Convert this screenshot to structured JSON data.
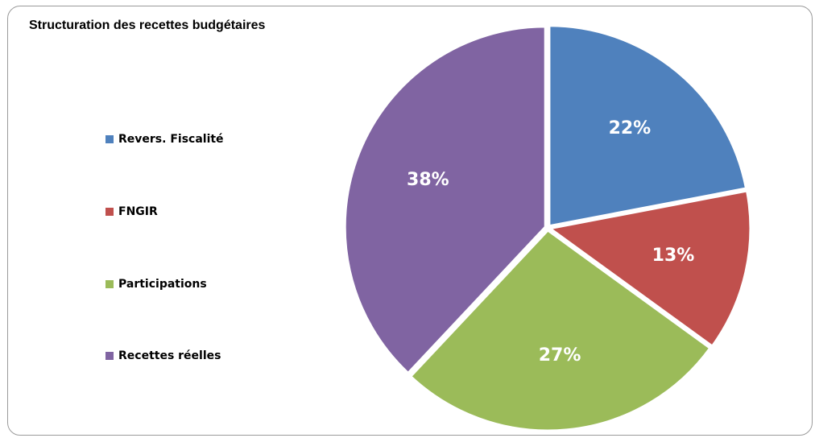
{
  "chart_data": {
    "type": "pie",
    "title": "Structuration des recettes budgétaires",
    "legend_position": "left",
    "slices": [
      {
        "name": "Revers. Fiscalité",
        "value": 22,
        "label": "22%",
        "color": "#4F81BD"
      },
      {
        "name": "FNGIR",
        "value": 13,
        "label": "13%",
        "color": "#C0504D"
      },
      {
        "name": "Participations",
        "value": 27,
        "label": "27%",
        "color": "#9BBB59"
      },
      {
        "name": "Recettes réelles",
        "value": 38,
        "label": "38%",
        "color": "#8064A2"
      }
    ]
  }
}
